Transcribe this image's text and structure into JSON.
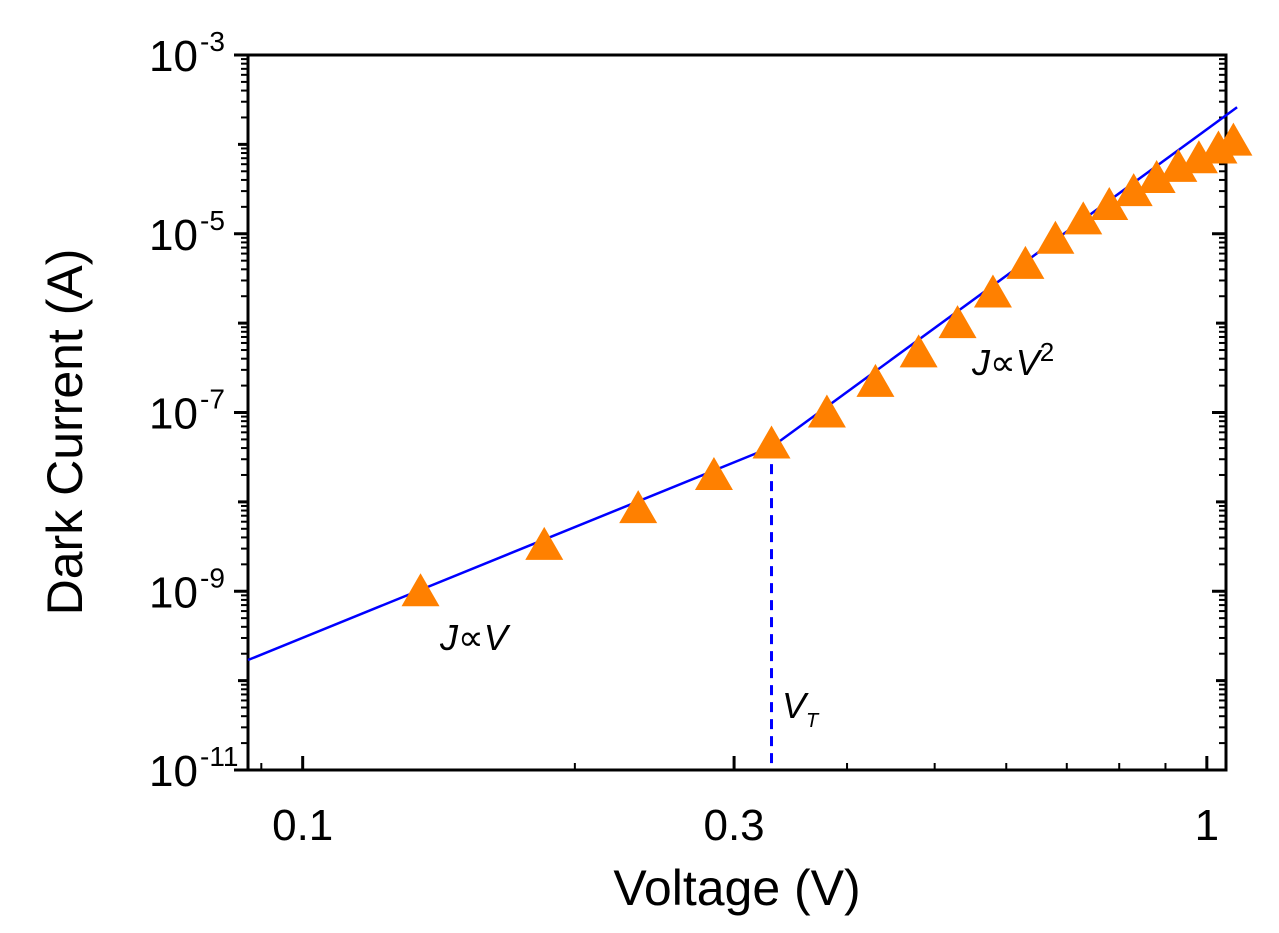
{
  "chart_data": {
    "type": "scatter",
    "title": "",
    "xlabel": "Voltage (V)",
    "ylabel": "Dark Current (A)",
    "xscale": "log",
    "yscale": "log",
    "xlim": [
      0.087,
      1.05
    ],
    "ylim": [
      1e-11,
      0.001
    ],
    "x_ticks": [
      {
        "value": 0.1,
        "label": "0.1"
      },
      {
        "value": 0.3,
        "label": "0.3"
      },
      {
        "value": 1,
        "label": "1"
      }
    ],
    "y_ticks": [
      {
        "value": 1e-11,
        "base": "10",
        "exp": "-11"
      },
      {
        "value": 1e-09,
        "base": "10",
        "exp": "-9"
      },
      {
        "value": 1e-07,
        "base": "10",
        "exp": "-7"
      },
      {
        "value": 1e-05,
        "base": "10",
        "exp": "-5"
      },
      {
        "value": 0.001,
        "base": "10",
        "exp": "-3"
      }
    ],
    "series": [
      {
        "name": "measured",
        "marker": "triangle",
        "color": "#ff8000",
        "points": [
          {
            "x": 0.135,
            "y": 1e-09
          },
          {
            "x": 0.185,
            "y": 3.3e-09
          },
          {
            "x": 0.235,
            "y": 8.5e-09
          },
          {
            "x": 0.285,
            "y": 2e-08
          },
          {
            "x": 0.33,
            "y": 4.5e-08
          },
          {
            "x": 0.38,
            "y": 1e-07
          },
          {
            "x": 0.43,
            "y": 2.2e-07
          },
          {
            "x": 0.48,
            "y": 4.7e-07
          },
          {
            "x": 0.53,
            "y": 1e-06
          },
          {
            "x": 0.58,
            "y": 2.2e-06
          },
          {
            "x": 0.63,
            "y": 4.6e-06
          },
          {
            "x": 0.68,
            "y": 8.8e-06
          },
          {
            "x": 0.73,
            "y": 1.45e-05
          },
          {
            "x": 0.78,
            "y": 2.1e-05
          },
          {
            "x": 0.83,
            "y": 3e-05
          },
          {
            "x": 0.88,
            "y": 4.2e-05
          },
          {
            "x": 0.93,
            "y": 5.6e-05
          },
          {
            "x": 0.98,
            "y": 7e-05
          },
          {
            "x": 1.03,
            "y": 9e-05
          },
          {
            "x": 1.07,
            "y": 0.00011
          }
        ]
      }
    ],
    "fit_lines": [
      {
        "name": "ohmic",
        "color": "#0000ff",
        "from": {
          "x": 0.087,
          "y": 1.7e-10
        },
        "to": {
          "x": 0.33,
          "y": 4.1e-08
        }
      },
      {
        "name": "child",
        "color": "#0000ff",
        "from": {
          "x": 0.33,
          "y": 4.1e-08
        },
        "to": {
          "x": 1.08,
          "y": 0.00026
        }
      }
    ],
    "threshold": {
      "x": 0.33,
      "y_top": 4.1e-08,
      "color": "#0000ff",
      "style": "dashed",
      "label": "V",
      "label_sub": "T"
    },
    "annotations": [
      {
        "id": "ohmic",
        "text": "J∝V",
        "sup": ""
      },
      {
        "id": "child",
        "text": "J∝V",
        "sup": "2"
      }
    ]
  }
}
